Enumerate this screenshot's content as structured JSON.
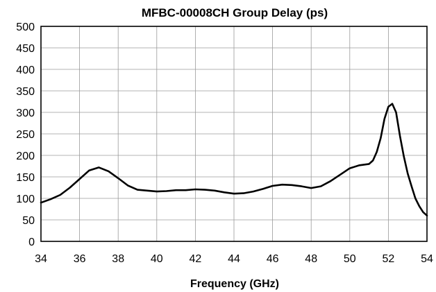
{
  "chart_data": {
    "type": "line",
    "title": "MFBC-00008CH Group Delay (ps)",
    "xlabel": "Frequency  (GHz)",
    "ylabel": "",
    "xlim": [
      34,
      54
    ],
    "ylim": [
      0,
      500
    ],
    "x_ticks": [
      34,
      36,
      38,
      40,
      42,
      44,
      46,
      48,
      50,
      52,
      54
    ],
    "y_ticks": [
      0,
      50,
      100,
      150,
      200,
      250,
      300,
      350,
      400,
      450,
      500
    ],
    "grid": true,
    "legend": "none",
    "line_color": "#000000",
    "series": [
      {
        "x": [
          34.0,
          34.5,
          35.0,
          35.5,
          36.0,
          36.5,
          37.0,
          37.5,
          38.0,
          38.5,
          39.0,
          39.5,
          40.0,
          40.5,
          41.0,
          41.5,
          42.0,
          42.5,
          43.0,
          43.5,
          44.0,
          44.5,
          45.0,
          45.5,
          46.0,
          46.5,
          47.0,
          47.5,
          48.0,
          48.5,
          49.0,
          49.5,
          50.0,
          50.5,
          51.0,
          51.2,
          51.4,
          51.6,
          51.8,
          52.0,
          52.2,
          52.4,
          52.6,
          52.8,
          53.0,
          53.2,
          53.4,
          53.6,
          53.8,
          54.0
        ],
        "y": [
          90,
          98,
          108,
          125,
          145,
          165,
          172,
          163,
          147,
          130,
          120,
          118,
          116,
          117,
          119,
          119,
          121,
          120,
          118,
          114,
          111,
          112,
          116,
          122,
          129,
          132,
          131,
          128,
          124,
          128,
          140,
          155,
          170,
          177,
          180,
          188,
          208,
          240,
          285,
          313,
          320,
          300,
          245,
          198,
          158,
          128,
          100,
          82,
          68,
          60
        ]
      }
    ]
  }
}
